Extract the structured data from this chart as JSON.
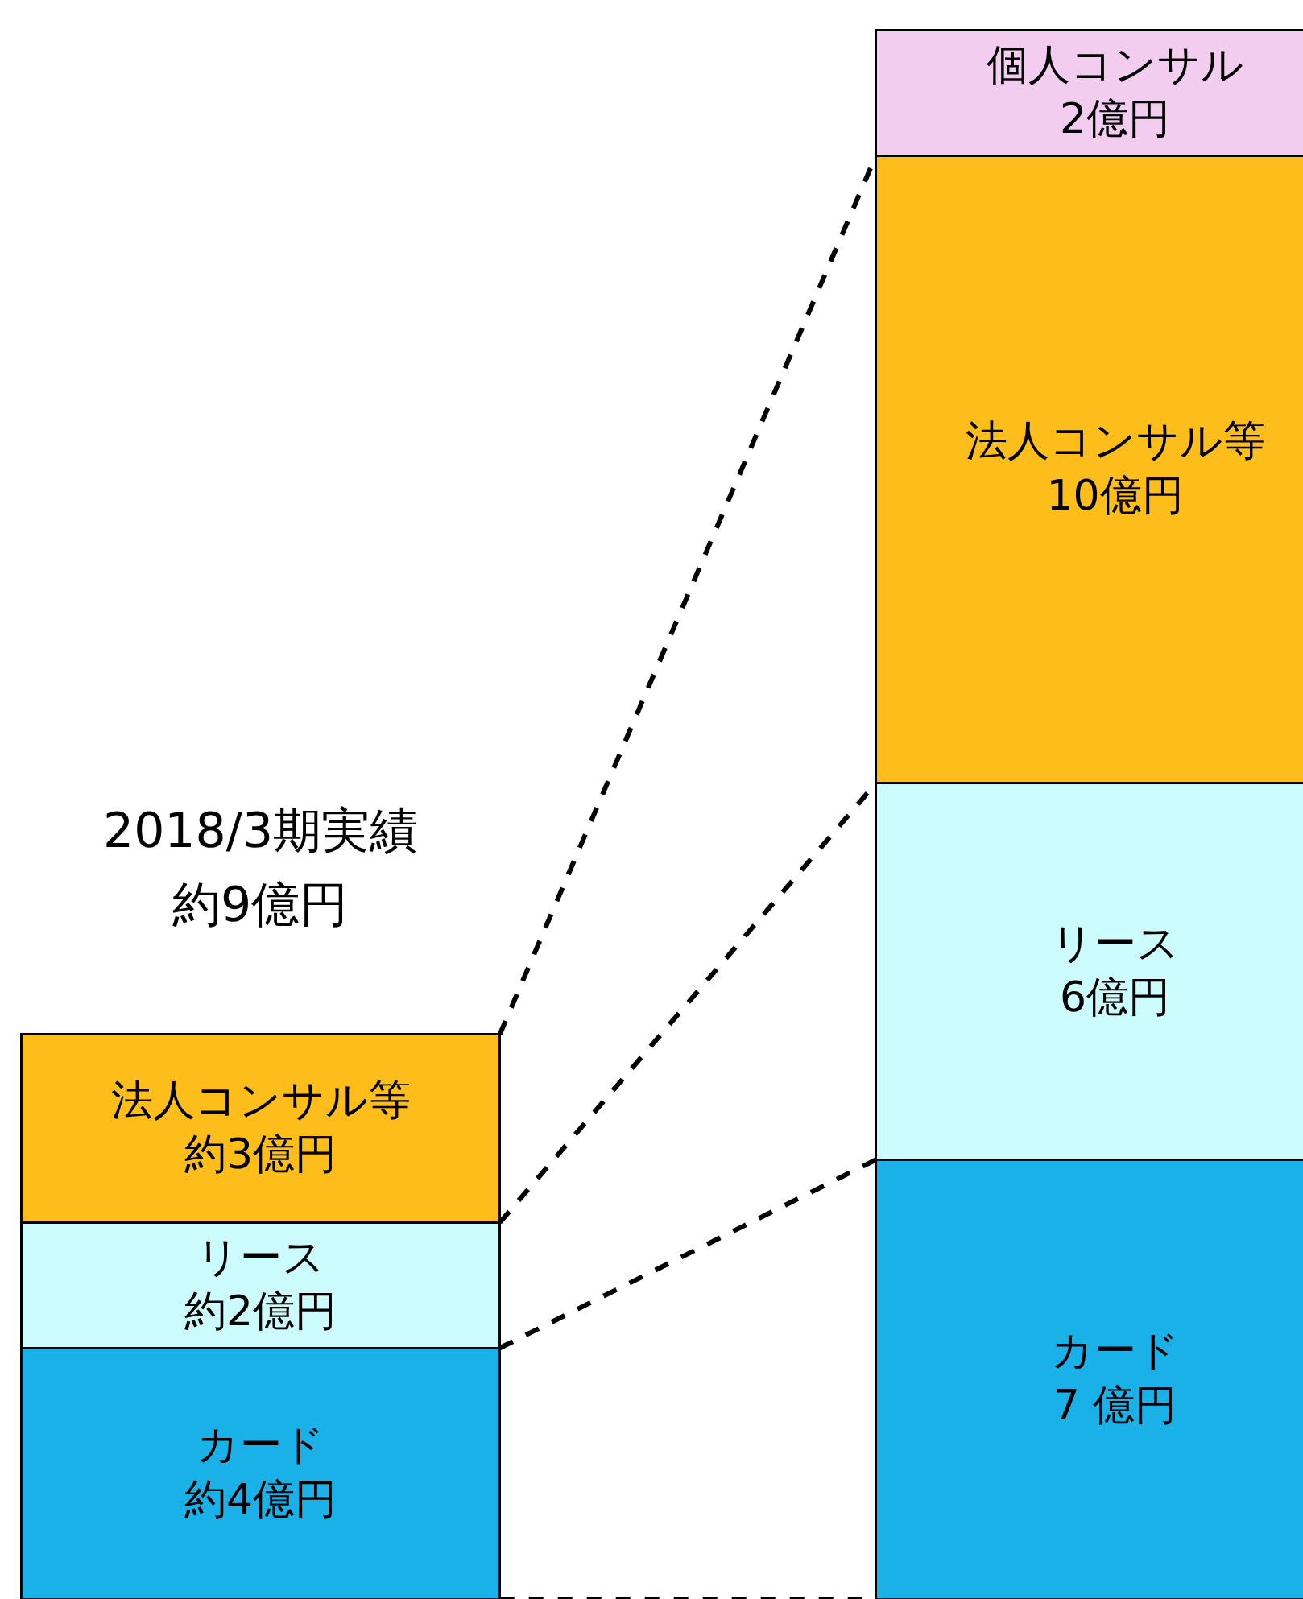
{
  "chart_data": {
    "type": "bar",
    "stacked": true,
    "categories": [
      null,
      null
    ],
    "series": [
      {
        "name": "カード",
        "color": "#1ab0e8",
        "values": [
          4,
          7
        ],
        "value_labels": [
          "約4億円",
          "7 億円"
        ]
      },
      {
        "name": "リース",
        "color": "#ccfbfd",
        "values": [
          2,
          6
        ],
        "value_labels": [
          "約2億円",
          "6億円"
        ]
      },
      {
        "name": "法人コンサル等",
        "color": "#fdbd1a",
        "values": [
          3,
          10
        ],
        "value_labels": [
          "約3億円",
          "10億円"
        ]
      },
      {
        "name": "個人コンサル",
        "color": "#f3cdef",
        "values": [
          null,
          2
        ],
        "value_labels": [
          null,
          "2億円"
        ]
      }
    ],
    "annotations": [
      "2018/3期実績",
      "約9億円"
    ],
    "legend": false,
    "grid": false
  }
}
